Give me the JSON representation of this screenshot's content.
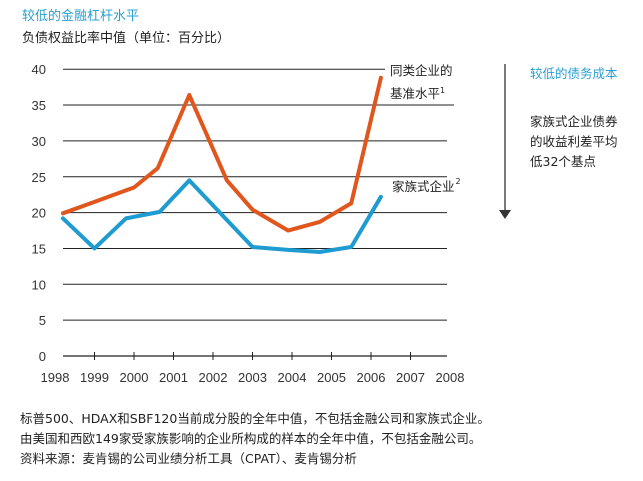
{
  "title": "较低的金融杠杆水平",
  "subtitle": "负债权益比率中值（单位：百分比）",
  "chart_data": {
    "type": "line",
    "title": "较低的金融杠杆水平",
    "ylabel": "负债权益比率中值（单位：百分比）",
    "xlim": [
      1998,
      2008
    ],
    "ylim": [
      0,
      40
    ],
    "xticks": [
      "1998",
      "1999",
      "2000",
      "2001",
      "2002",
      "2003",
      "2004",
      "2005",
      "2006",
      "2007",
      "2008"
    ],
    "yticks": [
      "0",
      "5",
      "10",
      "15",
      "20",
      "25",
      "30",
      "35",
      "40"
    ],
    "grid": true,
    "series": [
      {
        "name": "同类企业的基准水平",
        "sup": "1",
        "color": "#e0561c",
        "x": [
          1998.2,
          1999,
          2000,
          2000.6,
          2001.4,
          2002.35,
          2003,
          2003.9,
          2004.7,
          2005.5,
          2006.25
        ],
        "y": [
          19.9,
          21.5,
          23.5,
          26.2,
          36.4,
          24.5,
          20.4,
          17.5,
          18.7,
          21.3,
          38.8
        ]
      },
      {
        "name": "家族式企业",
        "sup": "2",
        "color": "#1e9bd0",
        "x": [
          1998.2,
          1999,
          1999.8,
          2000.65,
          2001.4,
          2003,
          2003.9,
          2004.7,
          2005.5,
          2006.25
        ],
        "y": [
          19.2,
          15.0,
          19.2,
          20.1,
          24.5,
          15.2,
          14.8,
          14.5,
          15.2,
          22.2
        ]
      }
    ]
  },
  "side_panel": {
    "title": "较低的债务成本",
    "lines": [
      "家族式企业债券",
      "的收益利差平均",
      "低32个基点"
    ]
  },
  "footnotes": [
    "标普500、HDAX和SBF120当前成分股的全年中值，不包括金融公司和家族式企业。",
    "由美国和西欧149家受家族影响的企业所构成的样本的全年中值，不包括金融公司。",
    "资料来源：麦肯锡的公司业绩分析工具（CPAT）、麦肯锡分析"
  ]
}
